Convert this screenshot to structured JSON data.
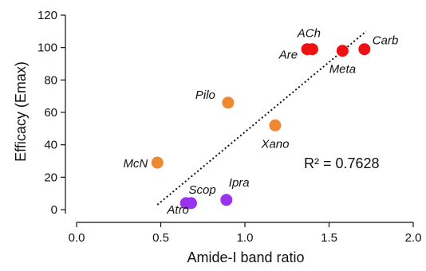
{
  "chart_data": {
    "type": "scatter",
    "title": "",
    "xlabel": "Amide-I band ratio",
    "ylabel": "Efficacy (Emax)",
    "xlim": [
      0.0,
      2.0
    ],
    "ylim": [
      0,
      120
    ],
    "xticks": [
      "0.0",
      "0.5",
      "1.0",
      "1.5",
      "2.0"
    ],
    "yticks": [
      "0",
      "20",
      "40",
      "60",
      "80",
      "100",
      "120"
    ],
    "grid": false,
    "points": [
      {
        "label": "ACh",
        "x": 1.4,
        "y": 99,
        "color": "#ee1111"
      },
      {
        "label": "Are",
        "x": 1.37,
        "y": 99,
        "color": "#ee1111"
      },
      {
        "label": "Meta",
        "x": 1.58,
        "y": 98,
        "color": "#ee1111"
      },
      {
        "label": "Carb",
        "x": 1.71,
        "y": 99,
        "color": "#ee1111"
      },
      {
        "label": "Pilo",
        "x": 0.9,
        "y": 66,
        "color": "#ee8833"
      },
      {
        "label": "Xano",
        "x": 1.18,
        "y": 52,
        "color": "#ee8833"
      },
      {
        "label": "McN",
        "x": 0.48,
        "y": 29,
        "color": "#ee8833"
      },
      {
        "label": "Ipra",
        "x": 0.89,
        "y": 6,
        "color": "#9933ee"
      },
      {
        "label": "Scop",
        "x": 0.68,
        "y": 4,
        "color": "#9933ee"
      },
      {
        "label": "Atro",
        "x": 0.65,
        "y": 4,
        "color": "#9933ee"
      }
    ],
    "trendline": {
      "x": [
        0.48,
        1.72
      ],
      "y": [
        3,
        110
      ],
      "style": "dotted"
    },
    "annotation": "R² = 0.7628"
  }
}
